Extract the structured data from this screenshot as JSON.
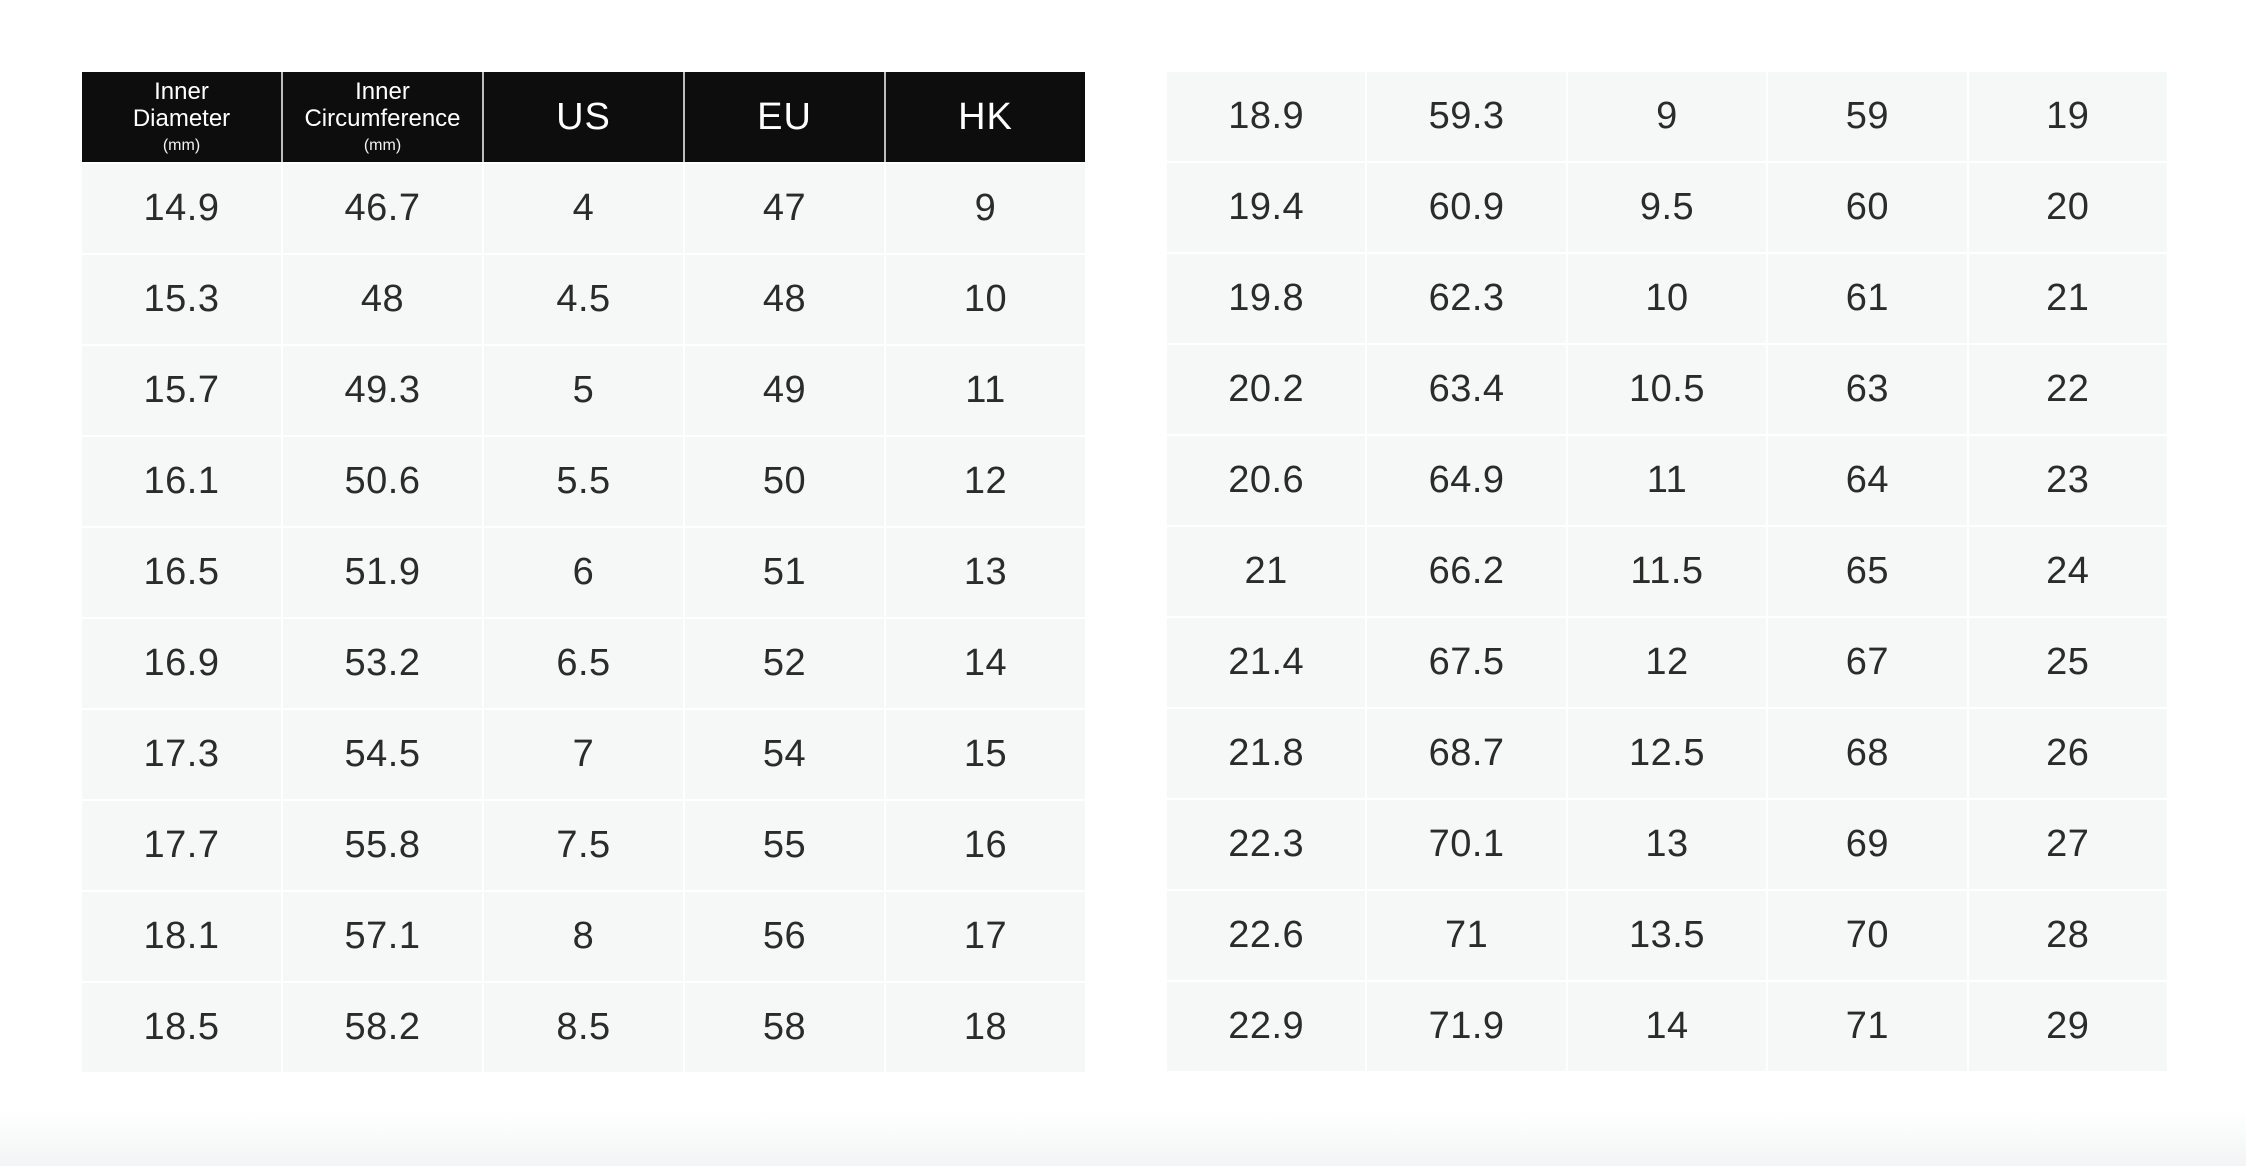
{
  "page": {
    "description": "Ring size conversion chart",
    "background": "#ffffff"
  },
  "colors": {
    "header_bg": "#0d0d0d",
    "header_text": "#ffffff",
    "body_cell_bg": "#f6f7f7",
    "cell_text": "#2b2b2b",
    "header_divider": "#bdbdbd",
    "body_divider": "#ffffff"
  },
  "size_chart": {
    "columns": [
      {
        "line1": "Inner",
        "line2": "Diameter",
        "sub": "(mm)"
      },
      {
        "line1": "Inner",
        "line2": "Circumference",
        "sub": "(mm)"
      },
      {
        "line1": "US"
      },
      {
        "line1": "EU"
      },
      {
        "line1": "HK"
      }
    ],
    "left_table_rows": [
      [
        "14.9",
        "46.7",
        "4",
        "47",
        "9"
      ],
      [
        "15.3",
        "48",
        "4.5",
        "48",
        "10"
      ],
      [
        "15.7",
        "49.3",
        "5",
        "49",
        "11"
      ],
      [
        "16.1",
        "50.6",
        "5.5",
        "50",
        "12"
      ],
      [
        "16.5",
        "51.9",
        "6",
        "51",
        "13"
      ],
      [
        "16.9",
        "53.2",
        "6.5",
        "52",
        "14"
      ],
      [
        "17.3",
        "54.5",
        "7",
        "54",
        "15"
      ],
      [
        "17.7",
        "55.8",
        "7.5",
        "55",
        "16"
      ],
      [
        "18.1",
        "57.1",
        "8",
        "56",
        "17"
      ],
      [
        "18.5",
        "58.2",
        "8.5",
        "58",
        "18"
      ]
    ],
    "right_table_rows": [
      [
        "18.9",
        "59.3",
        "9",
        "59",
        "19"
      ],
      [
        "19.4",
        "60.9",
        "9.5",
        "60",
        "20"
      ],
      [
        "19.8",
        "62.3",
        "10",
        "61",
        "21"
      ],
      [
        "20.2",
        "63.4",
        "10.5",
        "63",
        "22"
      ],
      [
        "20.6",
        "64.9",
        "11",
        "64",
        "23"
      ],
      [
        "21",
        "66.2",
        "11.5",
        "65",
        "24"
      ],
      [
        "21.4",
        "67.5",
        "12",
        "67",
        "25"
      ],
      [
        "21.8",
        "68.7",
        "12.5",
        "68",
        "26"
      ],
      [
        "22.3",
        "70.1",
        "13",
        "69",
        "27"
      ],
      [
        "22.6",
        "71",
        "13.5",
        "70",
        "28"
      ],
      [
        "22.9",
        "71.9",
        "14",
        "71",
        "29"
      ]
    ]
  }
}
